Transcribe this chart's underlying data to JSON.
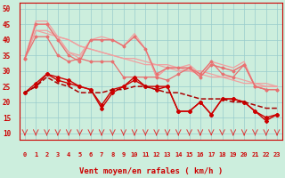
{
  "xlabel": "Vent moyen/en rafales ( km/h )",
  "bg_color": "#cceedd",
  "grid_color": "#99cccc",
  "x": [
    0,
    1,
    2,
    3,
    4,
    5,
    6,
    7,
    8,
    9,
    10,
    11,
    12,
    13,
    14,
    15,
    16,
    17,
    18,
    19,
    20,
    21,
    22,
    23
  ],
  "ylim": [
    8,
    52
  ],
  "yticks": [
    10,
    15,
    20,
    25,
    30,
    35,
    40,
    45,
    50
  ],
  "line_upper1": [
    34,
    46,
    46,
    41,
    36,
    35,
    40,
    41,
    40,
    38,
    42,
    37,
    28,
    31,
    31,
    32,
    29,
    33,
    32,
    31,
    33,
    25,
    25,
    25
  ],
  "line_upper2": [
    34,
    45,
    45,
    40,
    36,
    34,
    40,
    40,
    40,
    38,
    41,
    37,
    28,
    31,
    31,
    31,
    28,
    32,
    31,
    30,
    32,
    25,
    24,
    24
  ],
  "line_upper3_straight": [
    34,
    43,
    43,
    41,
    40,
    38,
    37,
    36,
    35,
    34,
    34,
    33,
    32,
    32,
    31,
    30,
    30,
    29,
    28,
    28,
    27,
    26,
    26,
    25
  ],
  "line_upper4_straight": [
    34,
    43,
    42,
    41,
    40,
    38,
    37,
    36,
    35,
    34,
    33,
    32,
    32,
    31,
    30,
    30,
    29,
    28,
    28,
    27,
    26,
    26,
    25,
    25
  ],
  "line_pink_lower": [
    34,
    41,
    41,
    35,
    33,
    34,
    33,
    33,
    33,
    28,
    28,
    28,
    28,
    27,
    29,
    31,
    29,
    33,
    29,
    28,
    32,
    25,
    24,
    24
  ],
  "line_pink_lower2": [
    34,
    45,
    45,
    40,
    35,
    33,
    40,
    40,
    40,
    38,
    41,
    37,
    29,
    31,
    31,
    31,
    28,
    32,
    31,
    30,
    32,
    25,
    24,
    24
  ],
  "line_red1": [
    23,
    26,
    29,
    28,
    27,
    25,
    24,
    19,
    24,
    25,
    28,
    25,
    25,
    25,
    17,
    17,
    20,
    16,
    21,
    21,
    20,
    17,
    15,
    16
  ],
  "line_red2": [
    23,
    25,
    28,
    26,
    25,
    23,
    23,
    23,
    24,
    24,
    25,
    25,
    24,
    23,
    23,
    22,
    21,
    21,
    21,
    20,
    20,
    19,
    18,
    18
  ],
  "line_red3": [
    23,
    25,
    29,
    27,
    26,
    25,
    24,
    18,
    23,
    25,
    27,
    25,
    24,
    25,
    17,
    17,
    20,
    16,
    21,
    21,
    20,
    17,
    14,
    16
  ],
  "color_light": "#f0a0a0",
  "color_pink": "#e87070",
  "color_red": "#cc0000",
  "color_darkred": "#aa0000",
  "arrow_color": "#dd3333",
  "xlabel_color": "#cc0000",
  "tick_color": "#cc0000"
}
